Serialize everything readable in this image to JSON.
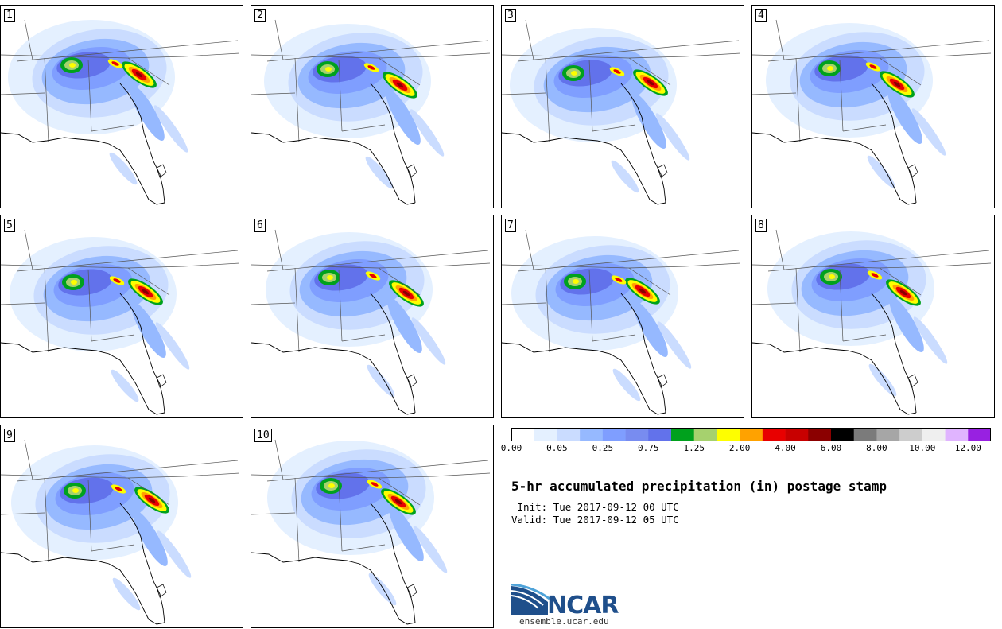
{
  "panels": [
    {
      "label": "1",
      "variant": 0
    },
    {
      "label": "2",
      "variant": 1
    },
    {
      "label": "3",
      "variant": 2
    },
    {
      "label": "4",
      "variant": 3
    },
    {
      "label": "5",
      "variant": 4
    },
    {
      "label": "6",
      "variant": 5
    },
    {
      "label": "7",
      "variant": 6
    },
    {
      "label": "8",
      "variant": 7
    },
    {
      "label": "9",
      "variant": 8
    },
    {
      "label": "10",
      "variant": 9
    }
  ],
  "colorbar": {
    "colors": [
      "#ffffff",
      "#e4f0ff",
      "#cadcff",
      "#96b9ff",
      "#7f9eff",
      "#788cf0",
      "#6272eb",
      "#00a11d",
      "#a6d16e",
      "#fefe00",
      "#ffa200",
      "#e80000",
      "#c80000",
      "#8b0000",
      "#000000",
      "#7b7b7b",
      "#a6a6a6",
      "#cdcdcd",
      "#efefef",
      "#e0b4ff",
      "#9821e1"
    ],
    "tick_labels": [
      "0.00",
      "0.05",
      "0.25",
      "0.75",
      "1.25",
      "2.00",
      "4.00",
      "6.00",
      "8.00",
      "10.00",
      "12.00"
    ]
  },
  "title": "5-hr accumulated precipitation (in) postage stamp",
  "init_line": " Init: Tue 2017-09-12 00 UTC",
  "valid_line": "Valid: Tue 2017-09-12 05 UTC",
  "logo": {
    "text": "NCAR",
    "site": "ensemble.ucar.edu",
    "color": "#1f4f8b"
  }
}
